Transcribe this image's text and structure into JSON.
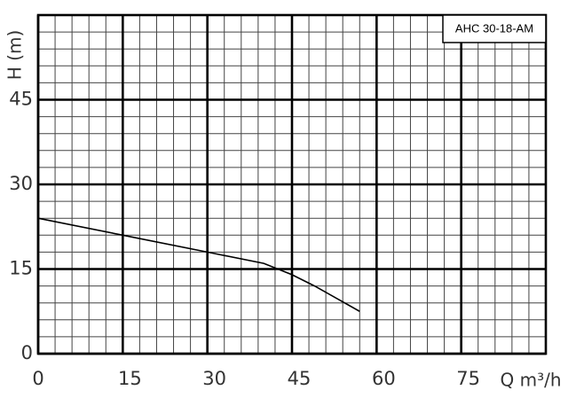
{
  "chart_data": {
    "type": "line",
    "title": "AHC 30-18-AM",
    "x_label": "Q m³/h",
    "y_label": "H (m)",
    "xlim": [
      0,
      90
    ],
    "ylim": [
      0,
      60
    ],
    "xticks": [
      0,
      15,
      30,
      45,
      60,
      75
    ],
    "yticks": [
      0,
      15,
      30,
      45
    ],
    "grid": {
      "major": true,
      "minor_divisions": 5
    },
    "series": [
      {
        "color": "#000000",
        "x": [
          0,
          15,
          30,
          40,
          45,
          49,
          57
        ],
        "values": [
          24,
          21,
          18,
          16,
          14,
          12,
          7.5
        ]
      }
    ]
  }
}
